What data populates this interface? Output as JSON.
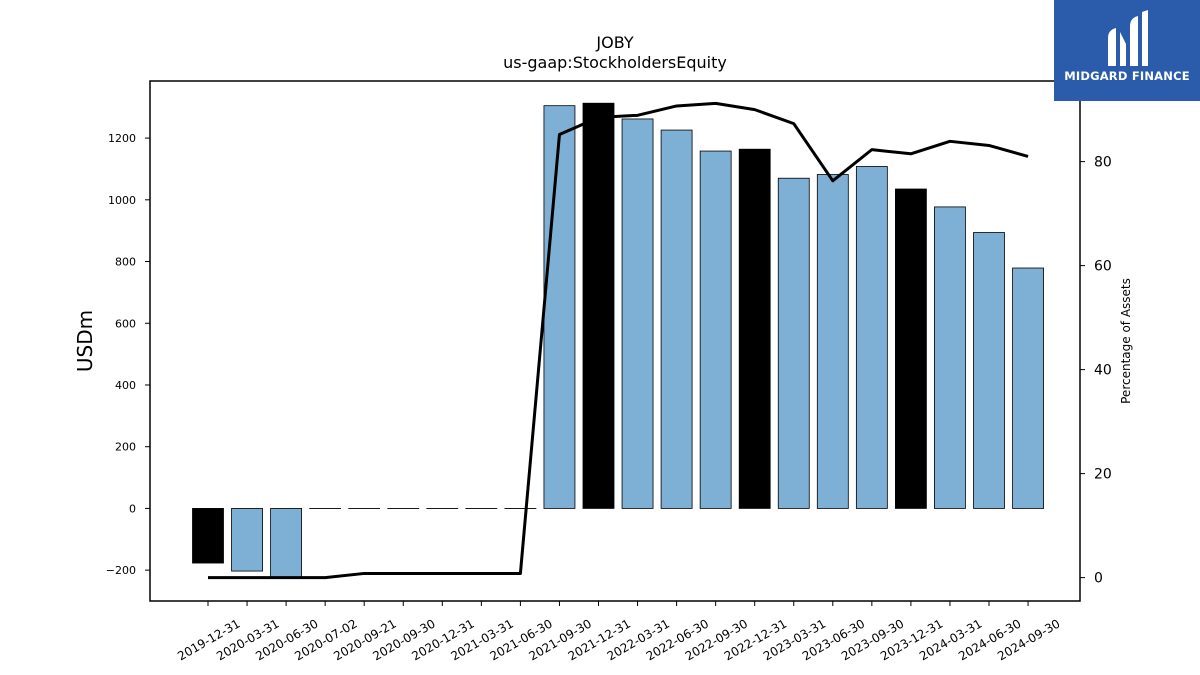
{
  "chart_data": {
    "type": "bar",
    "title": "JOBY",
    "subtitle": "us-gaap:StockholdersEquity",
    "ylabel": "USDm",
    "y2label": "Percentage of Assets",
    "ylim": [
      -300,
      1385
    ],
    "y2lim": [
      -4.5,
      95.5
    ],
    "yticks": [
      -200,
      0,
      200,
      400,
      600,
      800,
      1000,
      1200
    ],
    "y2ticks": [
      0,
      20,
      40,
      60,
      80
    ],
    "categories": [
      "2019-12-31",
      "2020-03-31",
      "2020-06-30",
      "2020-07-02",
      "2020-09-21",
      "2020-09-30",
      "2020-12-31",
      "2021-03-31",
      "2021-06-30",
      "2021-09-30",
      "2021-12-31",
      "2022-03-31",
      "2022-06-30",
      "2022-09-30",
      "2022-12-31",
      "2023-03-31",
      "2023-06-30",
      "2023-09-30",
      "2023-12-31",
      "2024-03-31",
      "2024-06-30",
      "2024-09-30"
    ],
    "values": [
      -177,
      -203,
      -222,
      0,
      0,
      0,
      0,
      0,
      0,
      1305,
      1313,
      1262,
      1226,
      1158,
      1164,
      1070,
      1082,
      1108,
      1035,
      977,
      894,
      779
    ],
    "bar_colors": [
      "#000000",
      "#7eb0d5",
      "#7eb0d5",
      "#7eb0d5",
      "#000000",
      "#7eb0d5",
      "#000000",
      "#7eb0d5",
      "#7eb0d5",
      "#7eb0d5",
      "#000000",
      "#7eb0d5",
      "#7eb0d5",
      "#7eb0d5",
      "#000000",
      "#7eb0d5",
      "#7eb0d5",
      "#7eb0d5",
      "#000000",
      "#7eb0d5",
      "#7eb0d5",
      "#7eb0d5"
    ],
    "series": [
      {
        "type": "line",
        "axis": "right",
        "color": "#000000",
        "values": [
          0,
          0,
          0,
          0,
          0.8,
          0.8,
          0.8,
          0.8,
          0.8,
          85.2,
          88.5,
          88.9,
          90.7,
          91.2,
          90.0,
          87.3,
          76.3,
          82.3,
          81.5,
          83.9,
          83.1,
          81.0
        ]
      }
    ],
    "grid": false
  },
  "logo": {
    "text": "MIDGARD FINANCE",
    "background": "#2b5bab"
  }
}
